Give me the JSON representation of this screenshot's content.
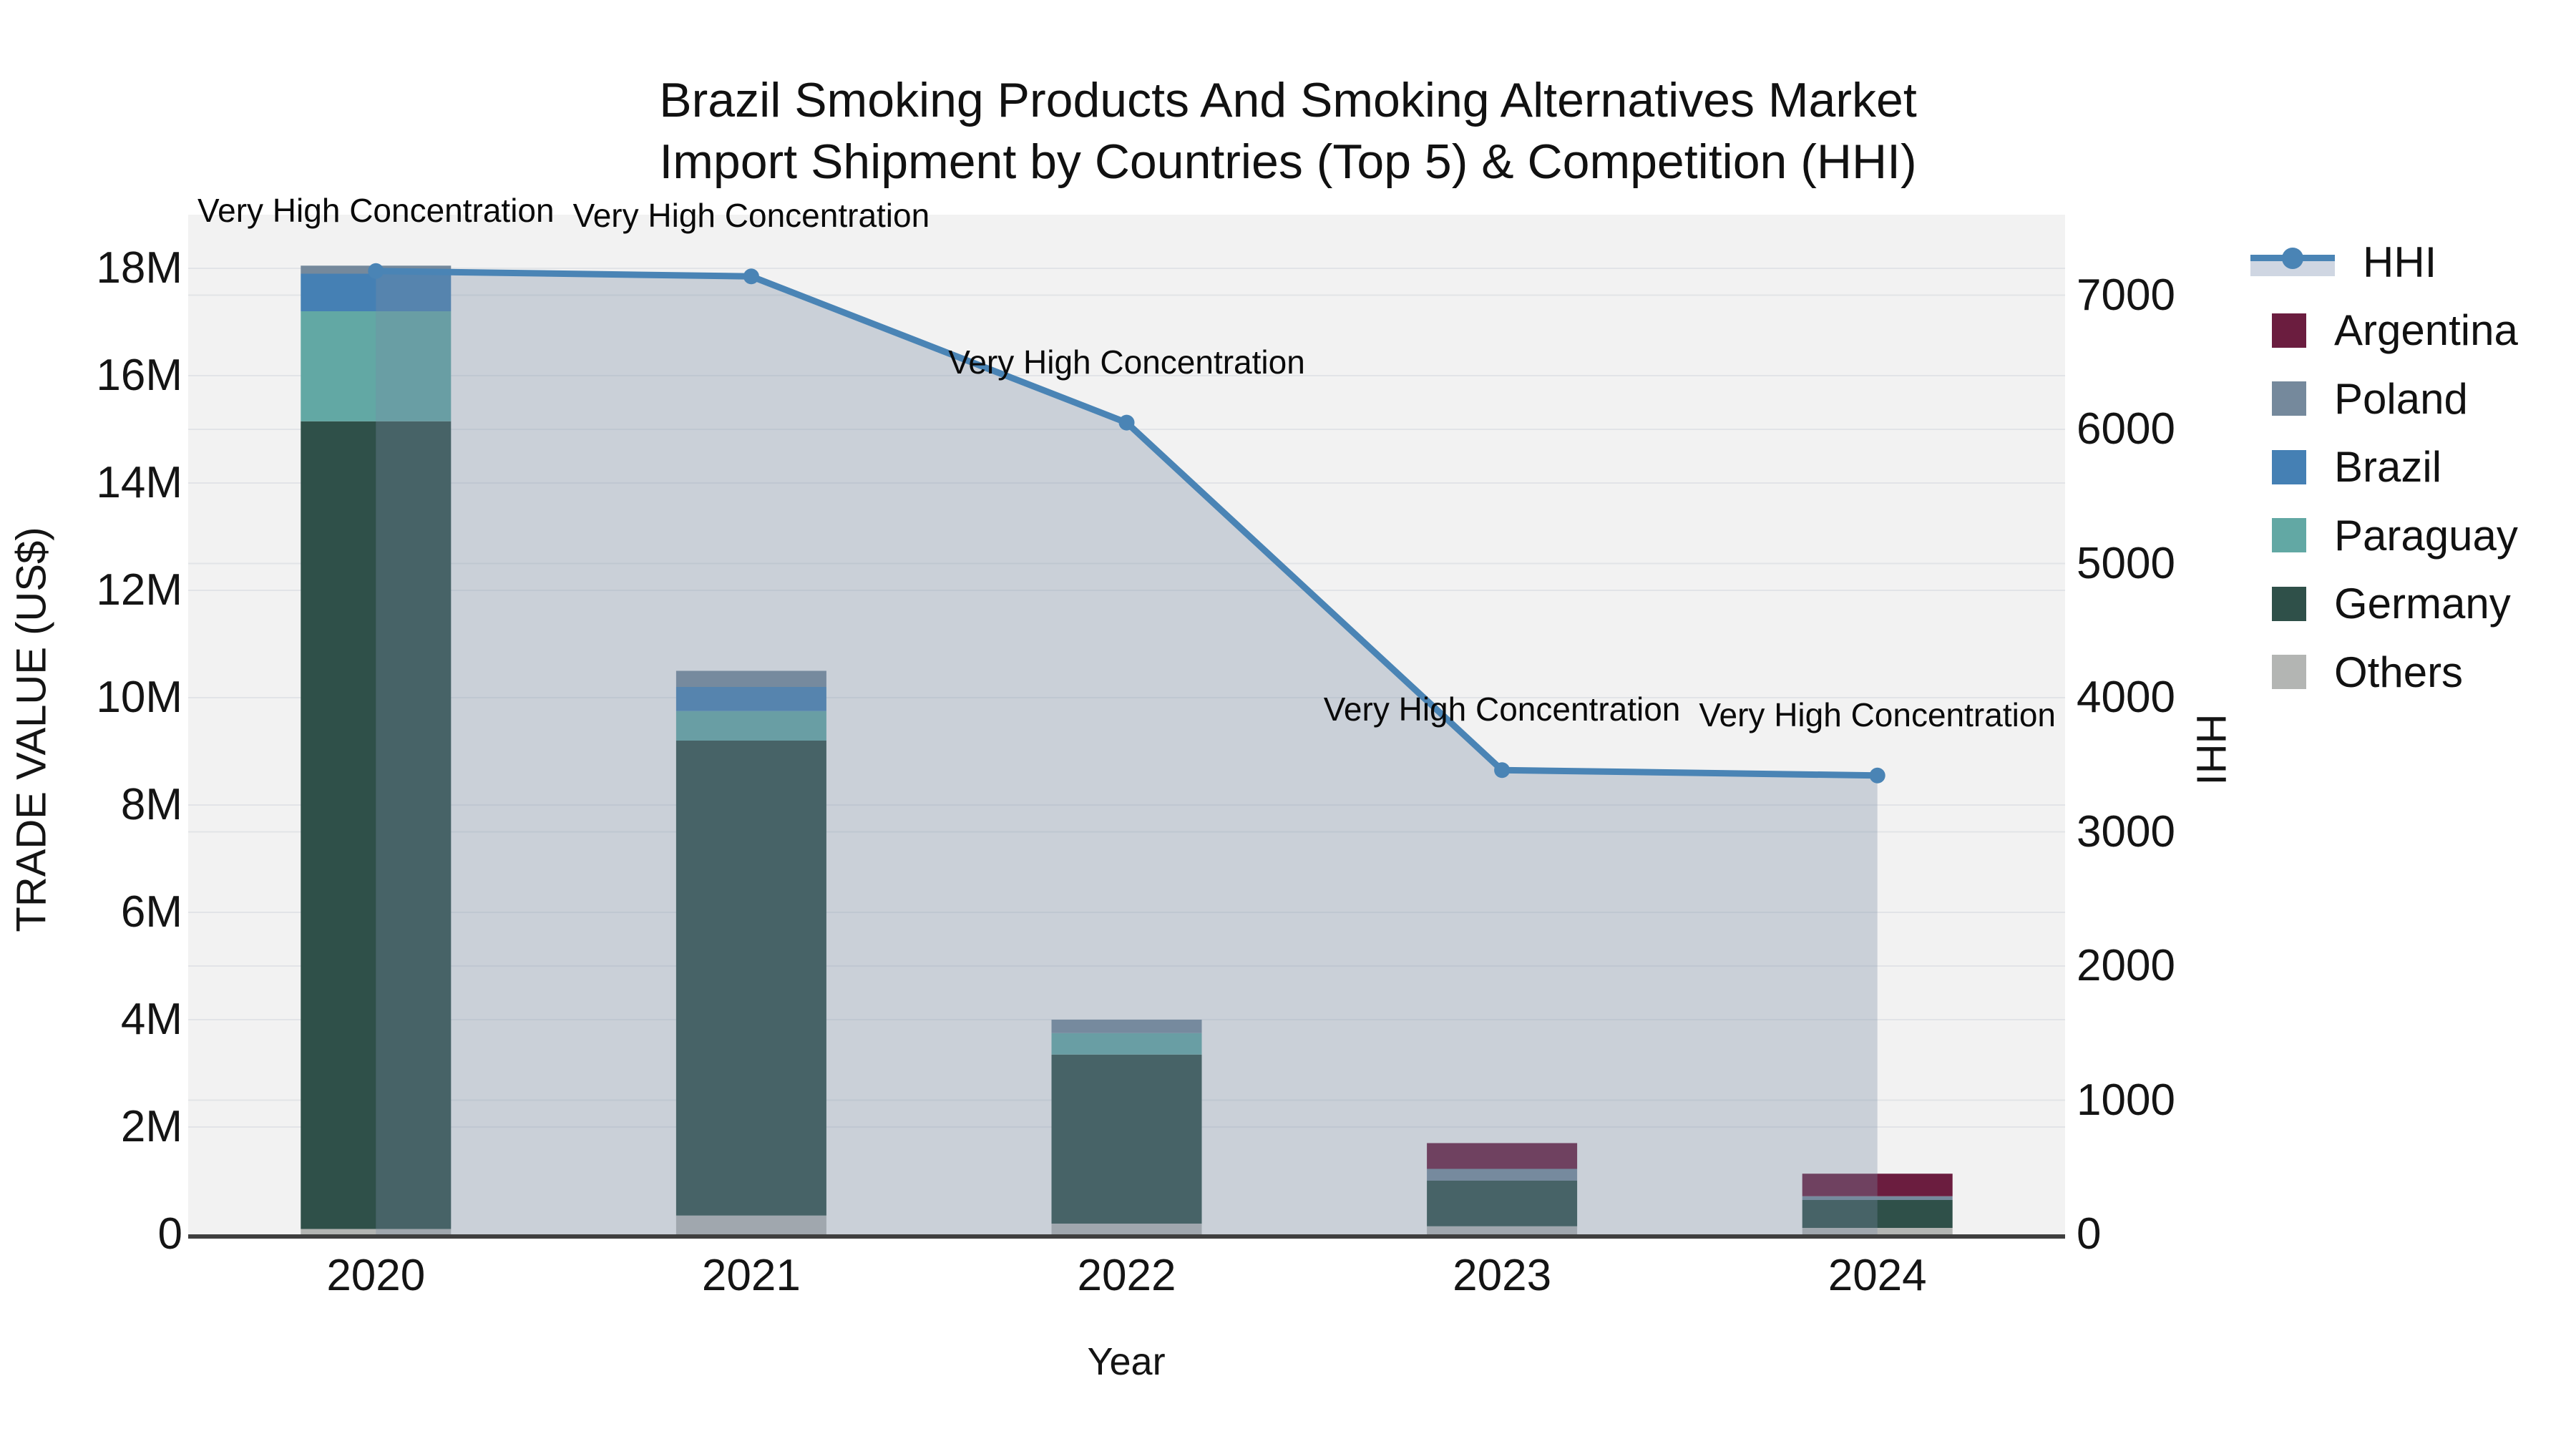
{
  "title": {
    "line1": "Brazil Smoking Products And Smoking Alternatives Market",
    "line2": "Import Shipment by Countries (Top 5) & Competition (HHI)"
  },
  "axes": {
    "x": {
      "title": "Year",
      "ticks": [
        "2020",
        "2021",
        "2022",
        "2023",
        "2024"
      ]
    },
    "y_left": {
      "title": "TRADE VALUE (US$)",
      "ticks": [
        "0",
        "2M",
        "4M",
        "6M",
        "8M",
        "10M",
        "12M",
        "14M",
        "16M",
        "18M"
      ]
    },
    "y_right": {
      "title": "HHI",
      "ticks": [
        "0",
        "1000",
        "2000",
        "3000",
        "4000",
        "5000",
        "6000",
        "7000"
      ]
    }
  },
  "legend": {
    "items": [
      {
        "label": "HHI",
        "type": "line",
        "color": "#4a84b5"
      },
      {
        "label": "Argentina",
        "type": "swatch",
        "color": "#6b1d3f"
      },
      {
        "label": "Poland",
        "type": "swatch",
        "color": "#75899c"
      },
      {
        "label": "Brazil",
        "type": "swatch",
        "color": "#4580b4"
      },
      {
        "label": "Paraguay",
        "type": "swatch",
        "color": "#62a8a4"
      },
      {
        "label": "Germany",
        "type": "swatch",
        "color": "#2f5049"
      },
      {
        "label": "Others",
        "type": "swatch",
        "color": "#b3b5b3"
      }
    ]
  },
  "colors": {
    "page_bg": "#ffffff",
    "plot_bg": "#f2f2f2",
    "grid": "#e2e4e7",
    "axis_line": "#3f3f3f",
    "hhi_line": "#4a84b5",
    "area_fill": "rgba(120,140,165,0.33)",
    "text": "#111111"
  },
  "chart_data": {
    "type": "composite",
    "subtypes": [
      "stacked-bar",
      "line-with-area"
    ],
    "title": "Brazil Smoking Products And Smoking Alternatives Market Import Shipment by Countries (Top 5) & Competition (HHI)",
    "xlabel": "Year",
    "ylabel_left": "TRADE VALUE (US$)",
    "ylabel_right": "HHI",
    "categories": [
      "2020",
      "2021",
      "2022",
      "2023",
      "2024"
    ],
    "bar_value_unit": "million US$",
    "stack_order_bottom_to_top": [
      "Others",
      "Germany",
      "Paraguay",
      "Brazil",
      "Poland",
      "Argentina"
    ],
    "series": [
      {
        "name": "Others",
        "type": "bar",
        "color": "#b3b5b3",
        "values": [
          0.1,
          0.35,
          0.2,
          0.15,
          0.12
        ]
      },
      {
        "name": "Germany",
        "type": "bar",
        "color": "#2f5049",
        "values": [
          15.05,
          8.85,
          3.15,
          0.85,
          0.52
        ]
      },
      {
        "name": "Paraguay",
        "type": "bar",
        "color": "#62a8a4",
        "values": [
          2.05,
          0.55,
          0.4,
          0.0,
          0.0
        ]
      },
      {
        "name": "Brazil",
        "type": "bar",
        "color": "#4580b4",
        "values": [
          0.7,
          0.45,
          0.0,
          0.0,
          0.0
        ]
      },
      {
        "name": "Poland",
        "type": "bar",
        "color": "#75899c",
        "values": [
          0.15,
          0.3,
          0.25,
          0.22,
          0.07
        ]
      },
      {
        "name": "Argentina",
        "type": "bar",
        "color": "#6b1d3f",
        "values": [
          0.0,
          0.0,
          0.0,
          0.48,
          0.42
        ]
      }
    ],
    "bar_totals_million": [
      18.05,
      10.5,
      4.0,
      1.7,
      1.13
    ],
    "line_series": {
      "name": "HHI",
      "color": "#4a84b5",
      "marker": "circle",
      "values": [
        7180,
        7140,
        6050,
        3460,
        3420
      ]
    },
    "annotations": [
      {
        "text": "Very High Concentration",
        "category": "2020"
      },
      {
        "text": "Very High Concentration",
        "category": "2021"
      },
      {
        "text": "Very High Concentration",
        "category": "2022"
      },
      {
        "text": "Very High Concentration",
        "category": "2023"
      },
      {
        "text": "Very High Concentration",
        "category": "2024"
      }
    ],
    "ylim_left_million": [
      0,
      19
    ],
    "ylim_right": [
      0,
      7600
    ],
    "grid": true,
    "legend_position": "right"
  }
}
